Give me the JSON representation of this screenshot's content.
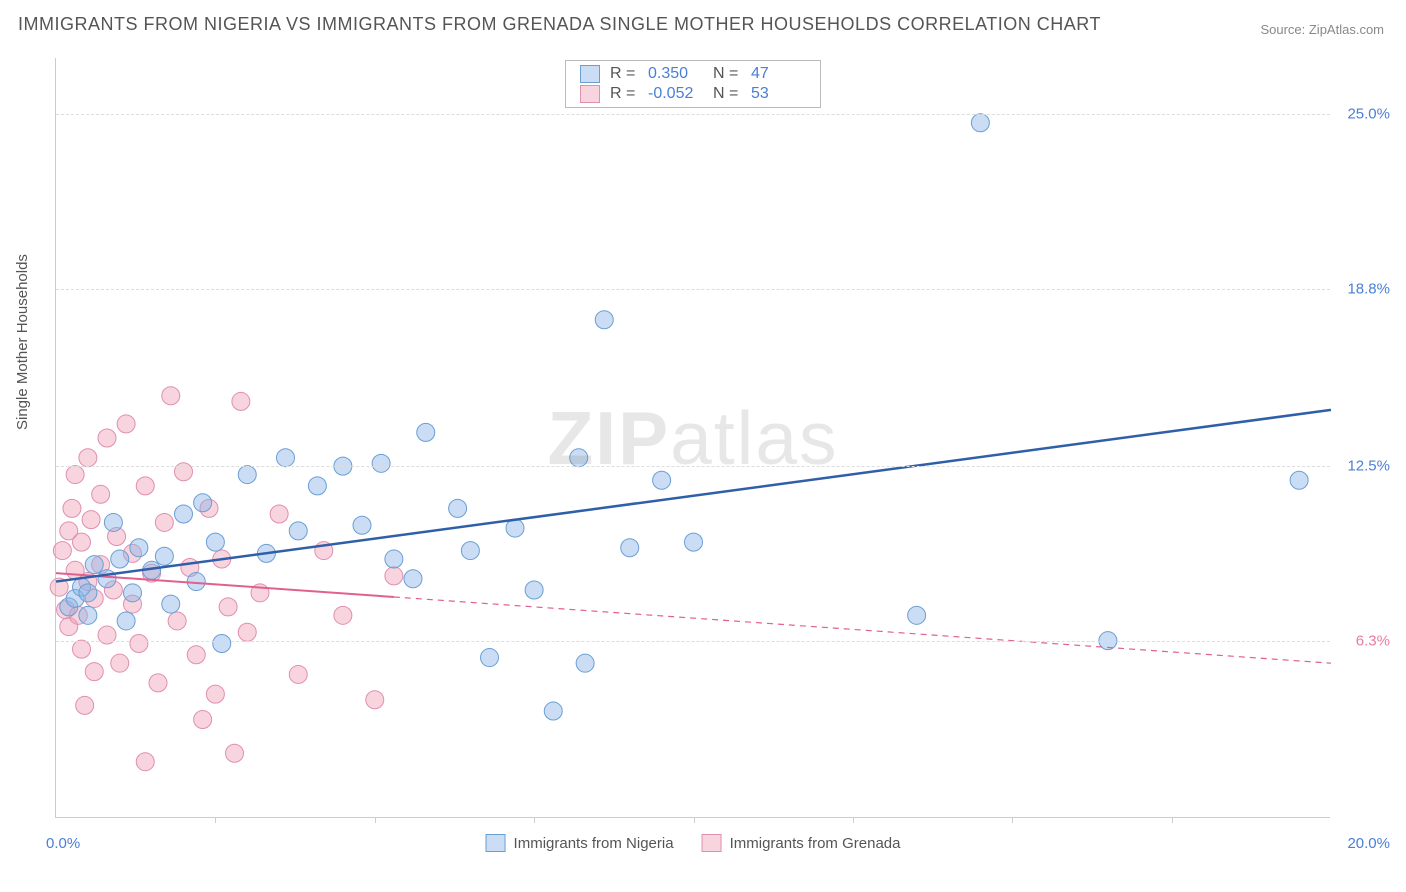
{
  "title": "IMMIGRANTS FROM NIGERIA VS IMMIGRANTS FROM GRENADA SINGLE MOTHER HOUSEHOLDS CORRELATION CHART",
  "source": "Source: ZipAtlas.com",
  "ylabel": "Single Mother Households",
  "watermark_bold": "ZIP",
  "watermark_rest": "atlas",
  "chart": {
    "type": "scatter",
    "xlim": [
      0,
      20
    ],
    "ylim": [
      0,
      27
    ],
    "x_axis_labels": [
      {
        "value": 0.0,
        "label": "0.0%",
        "color": "#4a7fd6"
      },
      {
        "value": 20.0,
        "label": "20.0%",
        "color": "#4a7fd6"
      }
    ],
    "x_ticks": [
      2.5,
      5.0,
      7.5,
      10.0,
      12.5,
      15.0,
      17.5
    ],
    "y_axis_labels": [
      {
        "value": 6.3,
        "label": "6.3%",
        "color": "#e87da0"
      },
      {
        "value": 12.5,
        "label": "12.5%",
        "color": "#4a7fd6"
      },
      {
        "value": 18.8,
        "label": "18.8%",
        "color": "#4a7fd6"
      },
      {
        "value": 25.0,
        "label": "25.0%",
        "color": "#4a7fd6"
      }
    ],
    "background_color": "#ffffff",
    "grid_color": "#dddddd",
    "series": [
      {
        "name": "Immigrants from Nigeria",
        "color_fill": "rgba(137,179,230,0.45)",
        "color_stroke": "#6a9fd4",
        "marker_radius": 9,
        "trend": {
          "x1": 0,
          "y1": 8.4,
          "x2": 20,
          "y2": 14.5,
          "solid_until_x": 20,
          "color": "#2e5fa8",
          "width": 2.5
        },
        "R": "0.350",
        "N": "47",
        "points": [
          [
            0.2,
            7.5
          ],
          [
            0.3,
            7.8
          ],
          [
            0.4,
            8.2
          ],
          [
            0.5,
            8.0
          ],
          [
            0.5,
            7.2
          ],
          [
            0.6,
            9.0
          ],
          [
            0.8,
            8.5
          ],
          [
            0.9,
            10.5
          ],
          [
            1.0,
            9.2
          ],
          [
            1.2,
            8.0
          ],
          [
            1.3,
            9.6
          ],
          [
            1.5,
            8.8
          ],
          [
            1.7,
            9.3
          ],
          [
            1.8,
            7.6
          ],
          [
            2.0,
            10.8
          ],
          [
            2.2,
            8.4
          ],
          [
            2.3,
            11.2
          ],
          [
            2.5,
            9.8
          ],
          [
            2.6,
            6.2
          ],
          [
            3.0,
            12.2
          ],
          [
            3.3,
            9.4
          ],
          [
            3.6,
            12.8
          ],
          [
            3.8,
            10.2
          ],
          [
            4.1,
            11.8
          ],
          [
            4.5,
            12.5
          ],
          [
            4.8,
            10.4
          ],
          [
            5.1,
            12.6
          ],
          [
            5.3,
            9.2
          ],
          [
            5.6,
            8.5
          ],
          [
            5.8,
            13.7
          ],
          [
            6.3,
            11.0
          ],
          [
            6.5,
            9.5
          ],
          [
            6.8,
            5.7
          ],
          [
            7.2,
            10.3
          ],
          [
            7.5,
            8.1
          ],
          [
            7.8,
            3.8
          ],
          [
            8.2,
            12.8
          ],
          [
            8.3,
            5.5
          ],
          [
            8.6,
            17.7
          ],
          [
            9.0,
            9.6
          ],
          [
            9.5,
            12.0
          ],
          [
            10.0,
            9.8
          ],
          [
            13.5,
            7.2
          ],
          [
            14.5,
            24.7
          ],
          [
            16.5,
            6.3
          ],
          [
            19.5,
            12.0
          ],
          [
            1.1,
            7.0
          ]
        ]
      },
      {
        "name": "Immigrants from Grenada",
        "color_fill": "rgba(240,160,185,0.45)",
        "color_stroke": "#e08fb0",
        "marker_radius": 9,
        "trend": {
          "x1": 0,
          "y1": 8.7,
          "x2": 20,
          "y2": 5.5,
          "solid_until_x": 5.3,
          "color": "#e06090",
          "width": 2
        },
        "R": "-0.052",
        "N": "53",
        "points": [
          [
            0.05,
            8.2
          ],
          [
            0.1,
            9.5
          ],
          [
            0.15,
            7.4
          ],
          [
            0.2,
            10.2
          ],
          [
            0.2,
            6.8
          ],
          [
            0.25,
            11.0
          ],
          [
            0.3,
            8.8
          ],
          [
            0.3,
            12.2
          ],
          [
            0.35,
            7.2
          ],
          [
            0.4,
            9.8
          ],
          [
            0.4,
            6.0
          ],
          [
            0.5,
            12.8
          ],
          [
            0.5,
            8.4
          ],
          [
            0.55,
            10.6
          ],
          [
            0.6,
            7.8
          ],
          [
            0.6,
            5.2
          ],
          [
            0.7,
            11.5
          ],
          [
            0.7,
            9.0
          ],
          [
            0.8,
            13.5
          ],
          [
            0.8,
            6.5
          ],
          [
            0.9,
            8.1
          ],
          [
            0.95,
            10.0
          ],
          [
            1.0,
            5.5
          ],
          [
            1.1,
            14.0
          ],
          [
            1.2,
            7.6
          ],
          [
            1.2,
            9.4
          ],
          [
            1.3,
            6.2
          ],
          [
            1.4,
            11.8
          ],
          [
            1.5,
            8.7
          ],
          [
            1.6,
            4.8
          ],
          [
            1.7,
            10.5
          ],
          [
            1.8,
            15.0
          ],
          [
            1.9,
            7.0
          ],
          [
            2.0,
            12.3
          ],
          [
            2.1,
            8.9
          ],
          [
            2.2,
            5.8
          ],
          [
            2.3,
            3.5
          ],
          [
            2.4,
            11.0
          ],
          [
            2.5,
            4.4
          ],
          [
            2.6,
            9.2
          ],
          [
            2.7,
            7.5
          ],
          [
            2.8,
            2.3
          ],
          [
            2.9,
            14.8
          ],
          [
            3.0,
            6.6
          ],
          [
            3.2,
            8.0
          ],
          [
            3.5,
            10.8
          ],
          [
            3.8,
            5.1
          ],
          [
            4.2,
            9.5
          ],
          [
            4.5,
            7.2
          ],
          [
            5.0,
            4.2
          ],
          [
            5.3,
            8.6
          ],
          [
            1.4,
            2.0
          ],
          [
            0.45,
            4.0
          ]
        ]
      }
    ]
  },
  "legend": {
    "r_label": "R =",
    "n_label": "N ="
  }
}
